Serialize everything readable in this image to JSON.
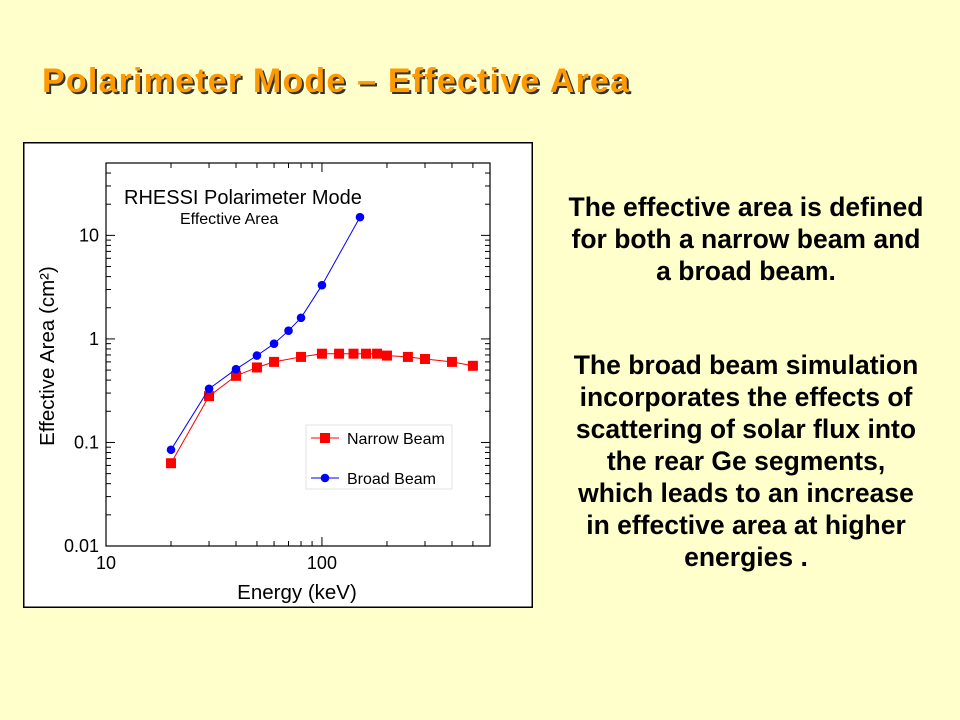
{
  "slide": {
    "title": "Polarimeter Mode – Effective Area",
    "paragraph1_lines": [
      "The effective area is defined",
      "for both a narrow beam and",
      "a broad beam."
    ],
    "paragraph2_lines": [
      "The broad beam simulation",
      "incorporates the effects of",
      "scattering of solar flux into",
      "the rear Ge segments,",
      "which leads to an increase",
      "in effective area at higher",
      "energies ."
    ],
    "colors": {
      "background": "#FFFFCC",
      "title": "#FF9900",
      "title_shadow": "#333333",
      "body_text": "#000000"
    }
  },
  "chart_data": {
    "type": "line",
    "title": "RHESSI Polarimeter Mode",
    "subtitle": "Effective Area",
    "xlabel": "Energy (keV)",
    "ylabel": "Effective Area (cm²)",
    "xscale": "log",
    "yscale": "log",
    "xlim": [
      10,
      600
    ],
    "ylim": [
      0.01,
      50
    ],
    "xticks": [
      {
        "value": 10,
        "label": "10"
      },
      {
        "value": 100,
        "label": "100"
      }
    ],
    "yticks": [
      {
        "value": 0.01,
        "label": "0.01"
      },
      {
        "value": 0.1,
        "label": "0.1"
      },
      {
        "value": 1,
        "label": "1"
      },
      {
        "value": 10,
        "label": "10"
      }
    ],
    "grid": false,
    "legend": "lower-right",
    "series": [
      {
        "name": "Narrow Beam",
        "color": "#FF0000",
        "marker": "square",
        "x": [
          20,
          30,
          40,
          50,
          60,
          80,
          100,
          120,
          140,
          160,
          180,
          200,
          250,
          300,
          400,
          500
        ],
        "y": [
          0.063,
          0.28,
          0.44,
          0.53,
          0.6,
          0.67,
          0.72,
          0.72,
          0.72,
          0.72,
          0.72,
          0.69,
          0.67,
          0.64,
          0.6,
          0.55
        ]
      },
      {
        "name": "Broad Beam",
        "color": "#0000FF",
        "marker": "circle",
        "x": [
          20,
          30,
          40,
          50,
          60,
          70,
          80,
          100,
          150
        ],
        "y": [
          0.085,
          0.33,
          0.51,
          0.69,
          0.9,
          1.2,
          1.6,
          3.3,
          15
        ]
      }
    ]
  }
}
